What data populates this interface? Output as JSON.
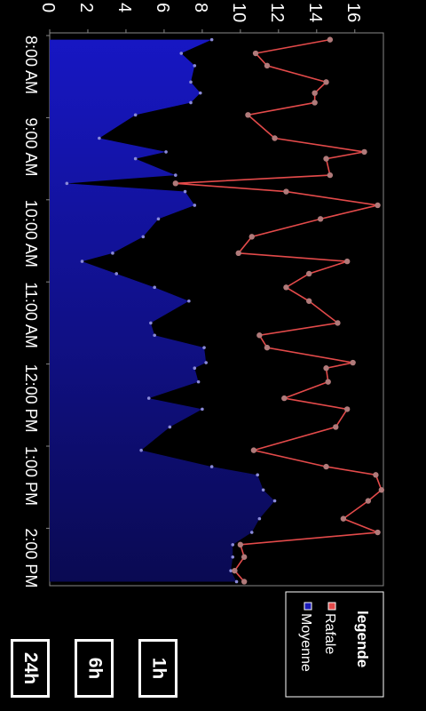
{
  "legend": {
    "title": "legende"
  },
  "range_buttons": [
    "1h",
    "6h",
    "24h"
  ],
  "chart_data": {
    "type": "area",
    "title": "",
    "xlabel": "",
    "ylabel": "",
    "ylim": [
      0,
      17.5
    ],
    "yticks": [
      0,
      2,
      4,
      6,
      8,
      10,
      12,
      14,
      16
    ],
    "xlim": [
      0,
      400
    ],
    "xticks": [
      {
        "t": 0,
        "label": "8:00 AM"
      },
      {
        "t": 60,
        "label": "9:00 AM"
      },
      {
        "t": 120,
        "label": "10:00 AM"
      },
      {
        "t": 180,
        "label": "11:00 AM"
      },
      {
        "t": 240,
        "label": "12:00 PM"
      },
      {
        "t": 300,
        "label": "1:00 PM"
      },
      {
        "t": 360,
        "label": "2:00 PM"
      }
    ],
    "x_note": "x values are minutes after 8:00 AM",
    "grid": false,
    "legend_position": "bottom-right",
    "series": [
      {
        "name": "Rafale",
        "type": "line",
        "color": "#e34a4a",
        "x": [
          3,
          13,
          22,
          34,
          42,
          49,
          58,
          75,
          85,
          90,
          102,
          108,
          114,
          124,
          134,
          147,
          159,
          165,
          174,
          184,
          194,
          210,
          219,
          228,
          239,
          243,
          253,
          265,
          273,
          286,
          303,
          315,
          321,
          332,
          340,
          353,
          363,
          372,
          381,
          391,
          399
        ],
        "y": [
          14.7,
          10.8,
          11.4,
          14.5,
          13.9,
          13.9,
          10.4,
          11.8,
          16.5,
          14.5,
          14.7,
          6.6,
          12.4,
          17.2,
          14.2,
          10.6,
          9.9,
          15.6,
          13.6,
          12.4,
          13.6,
          15.1,
          11.0,
          11.4,
          15.9,
          14.5,
          14.6,
          12.3,
          15.6,
          15.0,
          10.7,
          14.5,
          17.1,
          17.4,
          16.7,
          15.4,
          17.2,
          10.0,
          10.2,
          9.7,
          10.2
        ]
      },
      {
        "name": "Moyenne",
        "type": "area",
        "color": "#1a1ab8",
        "x": [
          3,
          13,
          22,
          34,
          42,
          49,
          58,
          75,
          85,
          90,
          102,
          108,
          114,
          124,
          134,
          147,
          159,
          165,
          174,
          184,
          194,
          210,
          219,
          228,
          239,
          243,
          253,
          265,
          273,
          286,
          303,
          315,
          321,
          332,
          340,
          353,
          363,
          372,
          381,
          391,
          399
        ],
        "y": [
          8.5,
          6.9,
          7.6,
          7.4,
          7.9,
          7.4,
          4.5,
          2.6,
          6.1,
          4.5,
          6.6,
          0.9,
          7.1,
          7.6,
          5.7,
          4.9,
          3.3,
          1.7,
          3.5,
          5.5,
          7.3,
          5.3,
          5.5,
          8.1,
          8.2,
          7.6,
          7.8,
          5.2,
          8.0,
          6.3,
          4.8,
          8.5,
          10.9,
          11.2,
          11.8,
          11.0,
          10.6,
          9.6,
          9.6,
          9.5,
          9.8
        ]
      }
    ]
  }
}
